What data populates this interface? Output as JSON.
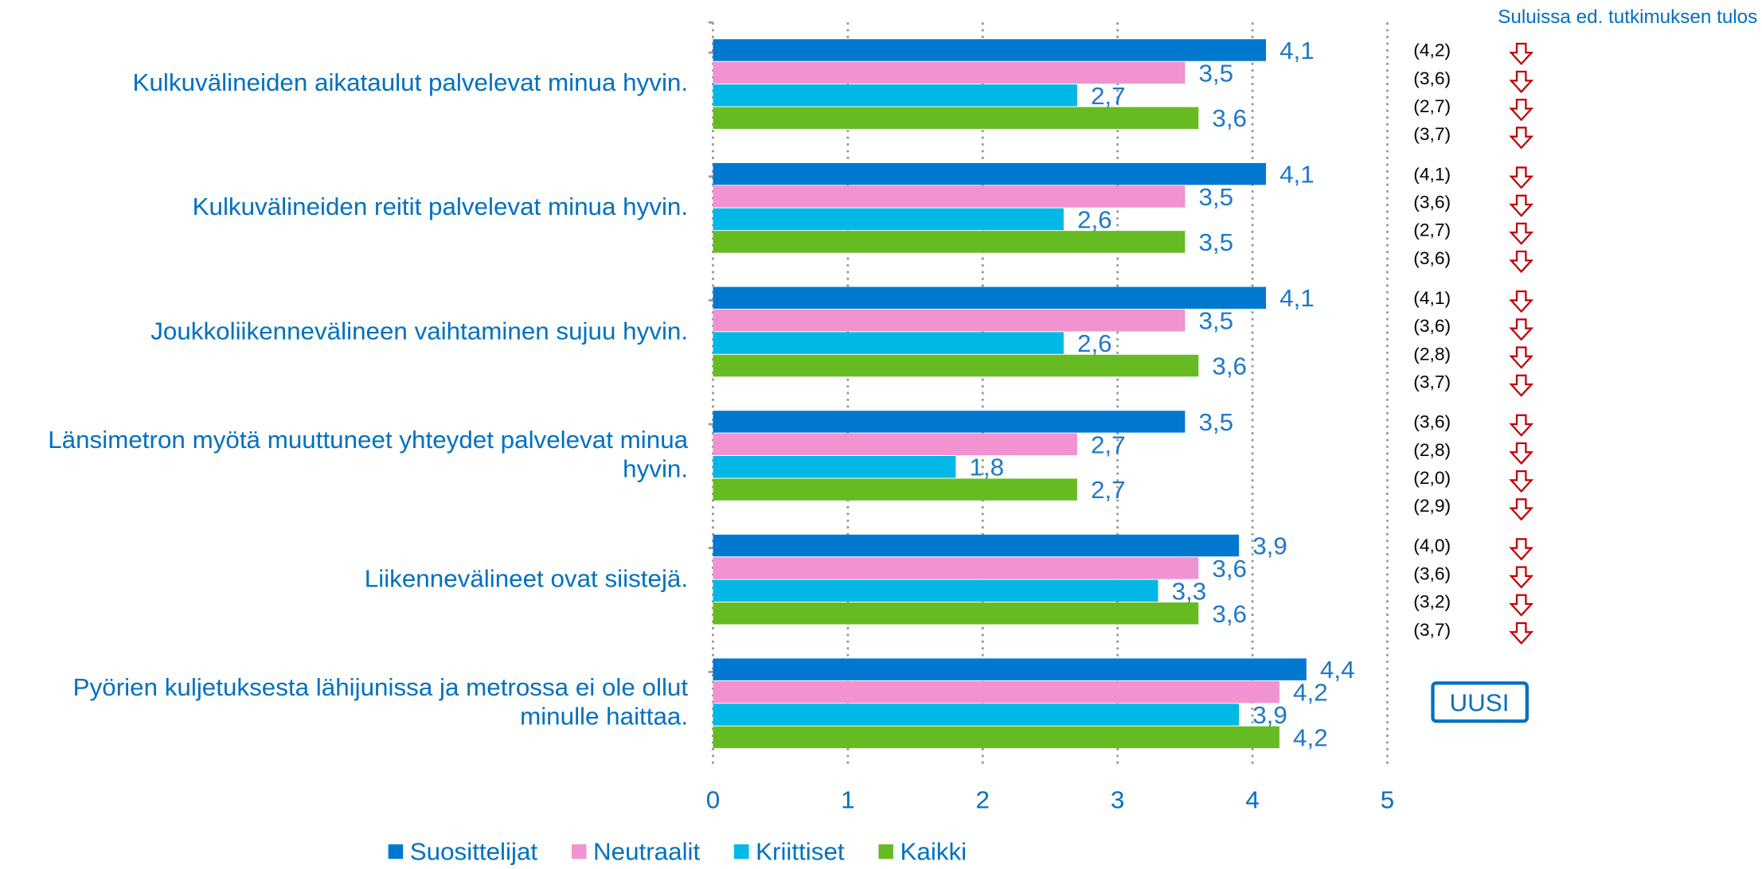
{
  "chart_data": {
    "type": "bar",
    "orientation": "horizontal",
    "categories": [
      "Kulkuvälineiden aikataulut palvelevat minua hyvin.",
      "Kulkuvälineiden reitit palvelevat minua hyvin.",
      "Joukkoliikennevälineen vaihtaminen sujuu hyvin.",
      "Länsimetron myötä muuttuneet yhteydet palvelevat minua hyvin.",
      "Liikennevälineet ovat siistejä.",
      "Pyörien kuljetuksesta lähijunissa ja metrossa ei ole ollut minulle haittaa."
    ],
    "series": [
      {
        "name": "Suosittelijat",
        "color": "#0078d0",
        "values": [
          4.1,
          4.1,
          4.1,
          3.5,
          3.9,
          4.4
        ],
        "value_labels": [
          "4,1",
          "4,1",
          "4,1",
          "3,5",
          "3,9",
          "4,4"
        ]
      },
      {
        "name": "Neutraalit",
        "color": "#f093d0",
        "values": [
          3.5,
          3.5,
          3.5,
          2.7,
          3.6,
          4.2
        ],
        "value_labels": [
          "3,5",
          "3,5",
          "3,5",
          "2,7",
          "3,6",
          "4,2"
        ]
      },
      {
        "name": "Kriittiset",
        "color": "#00b8e6",
        "values": [
          2.7,
          2.6,
          2.6,
          1.8,
          3.3,
          3.9
        ],
        "value_labels": [
          "2,7",
          "2,6",
          "2,6",
          "1,8",
          "3,3",
          "3,9"
        ]
      },
      {
        "name": "Kaikki",
        "color": "#66bb22",
        "values": [
          3.6,
          3.5,
          3.6,
          2.7,
          3.6,
          4.2
        ],
        "value_labels": [
          "3,6",
          "3,5",
          "3,6",
          "2,7",
          "3,6",
          "4,2"
        ]
      }
    ],
    "xlim": [
      0,
      5
    ],
    "xticks": [
      0,
      1,
      2,
      3,
      4,
      5
    ],
    "grid": true,
    "legend": "bottom",
    "previous_title": "Suluissa ed. tutkimuksen tulos",
    "previous": [
      [
        "(4,2)",
        "(3,6)",
        "(2,7)",
        "(3,7)"
      ],
      [
        "(4,1)",
        "(3,6)",
        "(2,7)",
        "(3,6)"
      ],
      [
        "(4,1)",
        "(3,6)",
        "(2,8)",
        "(3,7)"
      ],
      [
        "(3,6)",
        "(2,8)",
        "(2,0)",
        "(2,9)"
      ],
      [
        "(4,0)",
        "(3,6)",
        "(3,2)",
        "(3,7)"
      ]
    ],
    "new_label": "UUSI"
  }
}
